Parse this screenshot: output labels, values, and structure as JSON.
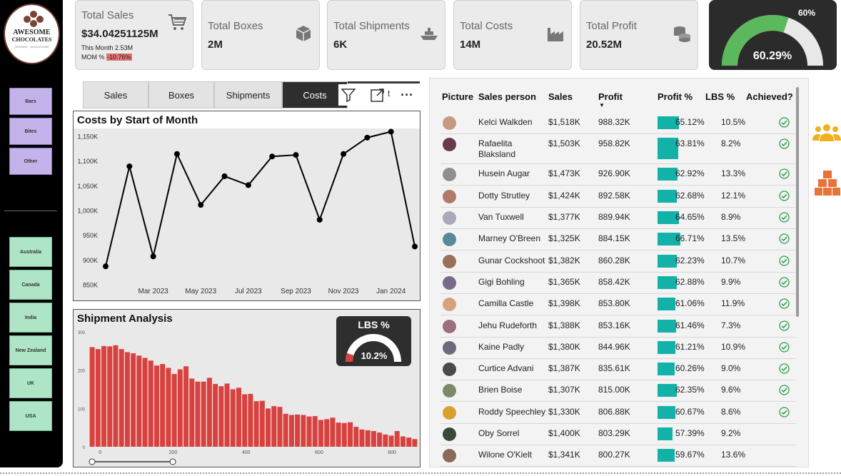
{
  "logo": {
    "line1": "AWESOME",
    "line2": "CHOCOLATES",
    "tagline": "ORGANIC · WHOLESOME"
  },
  "sidebar": {
    "products": [
      "Bars",
      "Bites",
      "Other"
    ],
    "countries": [
      "Australia",
      "Canada",
      "India",
      "New Zealand",
      "UK",
      "USA"
    ]
  },
  "kpis": {
    "sales": {
      "label": "Total Sales",
      "value": "$34.04251125M",
      "this_month": "This Month 2.53M",
      "mom_label": "MOM %",
      "mom_value": "-10.76%",
      "icon": "cart-icon"
    },
    "boxes": {
      "label": "Total Boxes",
      "value": "2M",
      "icon": "box-icon"
    },
    "shipments": {
      "label": "Total Shipments",
      "value": "6K",
      "icon": "ship-icon"
    },
    "costs": {
      "label": "Total Costs",
      "value": "14M",
      "icon": "factory-icon"
    },
    "profit": {
      "label": "Total Profit",
      "value": "20.52M",
      "icon": "coins-icon"
    }
  },
  "profit_gauge": {
    "target_label": "60%",
    "value_label": "60.29%",
    "value": 60.29,
    "target": 60,
    "fill_color": "#5cb85c",
    "track_color": "#e8e8e8"
  },
  "tabs": [
    {
      "label": "Sales"
    },
    {
      "label": "Boxes"
    },
    {
      "label": "Shipments"
    },
    {
      "label": "Costs",
      "active": true
    }
  ],
  "tab_overflow_label": "t",
  "chart_data": [
    {
      "type": "line",
      "title": "Costs by Start of Month",
      "x": [
        "Jan 2023",
        "Feb 2023",
        "Mar 2023",
        "Apr 2023",
        "May 2023",
        "Jun 2023",
        "Jul 2023",
        "Aug 2023",
        "Sep 2023",
        "Oct 2023",
        "Nov 2023",
        "Dec 2023",
        "Jan 2024",
        "Feb 2024"
      ],
      "values": [
        888,
        1090,
        908,
        1115,
        1012,
        1070,
        1052,
        1110,
        1113,
        982,
        1115,
        1148,
        1160,
        928
      ],
      "x_tick_labels": [
        "Mar 2023",
        "May 2023",
        "Jul 2023",
        "Sep 2023",
        "Nov 2023",
        "Jan 2024"
      ],
      "y_tick_labels": [
        "850K",
        "900K",
        "950K",
        "1,000K",
        "1,050K",
        "1,100K",
        "1,150K"
      ],
      "y_ticks": [
        850,
        900,
        950,
        1000,
        1050,
        1100,
        1150
      ],
      "ylim": [
        845,
        1155
      ],
      "xlabel": "",
      "ylabel": "",
      "unit": "K",
      "color": "#000000"
    },
    {
      "type": "bar",
      "title": "Shipment Analysis",
      "x_tick_labels": [
        "0",
        "200",
        "400",
        "600",
        "800"
      ],
      "x_ticks": [
        0,
        200,
        400,
        600,
        800
      ],
      "xlim": [
        -20,
        880
      ],
      "y_tick_labels": [
        "0",
        "100",
        "200",
        "300"
      ],
      "y_ticks": [
        0,
        100,
        200,
        300
      ],
      "ylim": [
        0,
        300
      ],
      "bar_width": 20,
      "values": [
        260,
        255,
        263,
        262,
        265,
        255,
        247,
        244,
        238,
        232,
        225,
        212,
        216,
        206,
        190,
        202,
        210,
        178,
        170,
        170,
        180,
        164,
        158,
        165,
        150,
        154,
        137,
        138,
        119,
        120,
        100,
        106,
        104,
        86,
        83,
        84,
        83,
        79,
        80,
        70,
        72,
        76,
        63,
        62,
        64,
        52,
        45,
        43,
        41,
        37,
        32,
        29,
        41,
        27,
        24,
        20
      ],
      "color": "#d9413e"
    }
  ],
  "lbs_card": {
    "title": "LBS %",
    "value_label": "10.2%",
    "value": 10.2,
    "fill_color": "#d9413e",
    "track_color": "#ffffff"
  },
  "table": {
    "headers": [
      "Picture",
      "Sales person",
      "Sales",
      "Profit",
      "Profit %",
      "LBS %",
      "Achieved?"
    ],
    "sort_indicator": "▼",
    "rows": [
      {
        "name": "Kelci Walkden",
        "sales": "$1,518K",
        "profit": "988.32K",
        "profit_pct": "65.12%",
        "pct": 65.12,
        "lbs": "10.5%",
        "achieved": true,
        "avatar": "#c49a80"
      },
      {
        "name": "Rafaelita Blaksland",
        "sales": "$1,503K",
        "profit": "958.82K",
        "profit_pct": "63.81%",
        "pct": 63.81,
        "lbs": "8.2%",
        "achieved": true,
        "avatar": "#6b3a4a"
      },
      {
        "name": "Husein Augar",
        "sales": "$1,473K",
        "profit": "926.90K",
        "profit_pct": "62.92%",
        "pct": 62.92,
        "lbs": "13.3%",
        "achieved": true,
        "avatar": "#8f8f8f"
      },
      {
        "name": "Dotty Strutley",
        "sales": "$1,424K",
        "profit": "892.58K",
        "profit_pct": "62.68%",
        "pct": 62.68,
        "lbs": "12.1%",
        "achieved": true,
        "avatar": "#b07a68"
      },
      {
        "name": "Van Tuxwell",
        "sales": "$1,377K",
        "profit": "889.94K",
        "profit_pct": "64.65%",
        "pct": 64.65,
        "lbs": "8.9%",
        "achieved": true,
        "avatar": "#a9a9b9"
      },
      {
        "name": "Marney O'Breen",
        "sales": "$1,325K",
        "profit": "884.15K",
        "profit_pct": "66.71%",
        "pct": 66.71,
        "lbs": "13.5%",
        "achieved": true,
        "avatar": "#5a8a9a"
      },
      {
        "name": "Gunar Cockshoot",
        "sales": "$1,382K",
        "profit": "860.28K",
        "profit_pct": "62.23%",
        "pct": 62.23,
        "lbs": "10.7%",
        "achieved": true,
        "avatar": "#9a7058"
      },
      {
        "name": "Gigi Bohling",
        "sales": "$1,365K",
        "profit": "858.42K",
        "profit_pct": "62.88%",
        "pct": 62.88,
        "lbs": "9.9%",
        "achieved": true,
        "avatar": "#7a6a8a"
      },
      {
        "name": "Camilla Castle",
        "sales": "$1,398K",
        "profit": "853.80K",
        "profit_pct": "61.06%",
        "pct": 61.06,
        "lbs": "11.9%",
        "achieved": true,
        "avatar": "#d9a080"
      },
      {
        "name": "Jehu Rudeforth",
        "sales": "$1,388K",
        "profit": "853.16K",
        "profit_pct": "61.46%",
        "pct": 61.46,
        "lbs": "7.3%",
        "achieved": true,
        "avatar": "#9a7080"
      },
      {
        "name": "Kaine Padly",
        "sales": "$1,380K",
        "profit": "844.96K",
        "profit_pct": "61.21%",
        "pct": 61.21,
        "lbs": "10.9%",
        "achieved": true,
        "avatar": "#6a6a7a"
      },
      {
        "name": "Curtice Advani",
        "sales": "$1,387K",
        "profit": "835.61K",
        "profit_pct": "60.26%",
        "pct": 60.26,
        "lbs": "9.0%",
        "achieved": true,
        "avatar": "#4a4a4a"
      },
      {
        "name": "Brien Boise",
        "sales": "$1,307K",
        "profit": "815.00K",
        "profit_pct": "62.35%",
        "pct": 62.35,
        "lbs": "9.6%",
        "achieved": true,
        "avatar": "#7a8a6a"
      },
      {
        "name": "Roddy Speechley",
        "sales": "$1,330K",
        "profit": "806.88K",
        "profit_pct": "60.67%",
        "pct": 60.67,
        "lbs": "8.6%",
        "achieved": true,
        "avatar": "#d9a030"
      },
      {
        "name": "Oby Sorrel",
        "sales": "$1,400K",
        "profit": "803.29K",
        "profit_pct": "57.39%",
        "pct": 57.39,
        "lbs": "9.2%",
        "achieved": false,
        "avatar": "#3a4a3a"
      },
      {
        "name": "Wilone O'Kielt",
        "sales": "$1,341K",
        "profit": "800.27K",
        "profit_pct": "59.67%",
        "pct": 59.67,
        "lbs": "13.6%",
        "achieved": false,
        "avatar": "#8a6a5a"
      }
    ]
  },
  "side_icons": [
    "people-icon",
    "boxes-icon"
  ],
  "colors": {
    "teal": "#13b2a8",
    "check": "#2e9e4e",
    "orange": "#e8733a",
    "gold": "#f0b020"
  }
}
